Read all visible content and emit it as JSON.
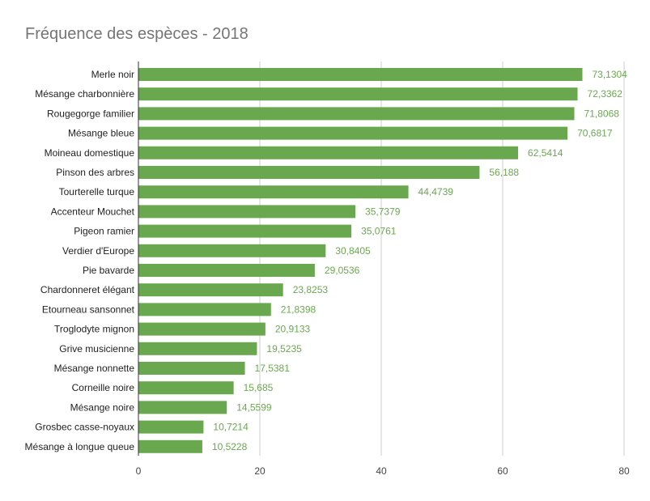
{
  "chart_data": {
    "type": "bar",
    "orientation": "horizontal",
    "title": "Fréquence des espèces - 2018",
    "xlabel": "",
    "ylabel": "",
    "xlim": [
      0,
      80
    ],
    "xticks": [
      "0",
      "20",
      "40",
      "60",
      "80"
    ],
    "grid": true,
    "legend": "none",
    "bar_color": "#6aa84f",
    "label_color": "#6aa84f",
    "categories": [
      "Merle noir",
      "Mésange charbonnière",
      "Rougegorge familier",
      "Mésange bleue",
      "Moineau domestique",
      "Pinson des arbres",
      "Tourterelle turque",
      "Accenteur Mouchet",
      "Pigeon ramier",
      "Verdier d'Europe",
      "Pie bavarde",
      "Chardonneret élégant",
      "Etourneau sansonnet",
      "Troglodyte mignon",
      "Grive musicienne",
      "Mésange nonnette",
      "Corneille noire",
      "Mésange noire",
      "Grosbec casse-noyaux",
      "Mésange à longue queue"
    ],
    "values": [
      73.1304,
      72.3362,
      71.8068,
      70.6817,
      62.5414,
      56.188,
      44.4739,
      35.7379,
      35.0761,
      30.8405,
      29.0536,
      23.8253,
      21.8398,
      20.9133,
      19.5235,
      17.5381,
      15.685,
      14.5599,
      10.7214,
      10.5228
    ],
    "value_labels": [
      "73,1304",
      "72,3362",
      "71,8068",
      "70,6817",
      "62,5414",
      "56,188",
      "44,4739",
      "35,7379",
      "35,0761",
      "30,8405",
      "29,0536",
      "23,8253",
      "21,8398",
      "20,9133",
      "19,5235",
      "17,5381",
      "15,685",
      "14,5599",
      "10,7214",
      "10,5228"
    ]
  }
}
